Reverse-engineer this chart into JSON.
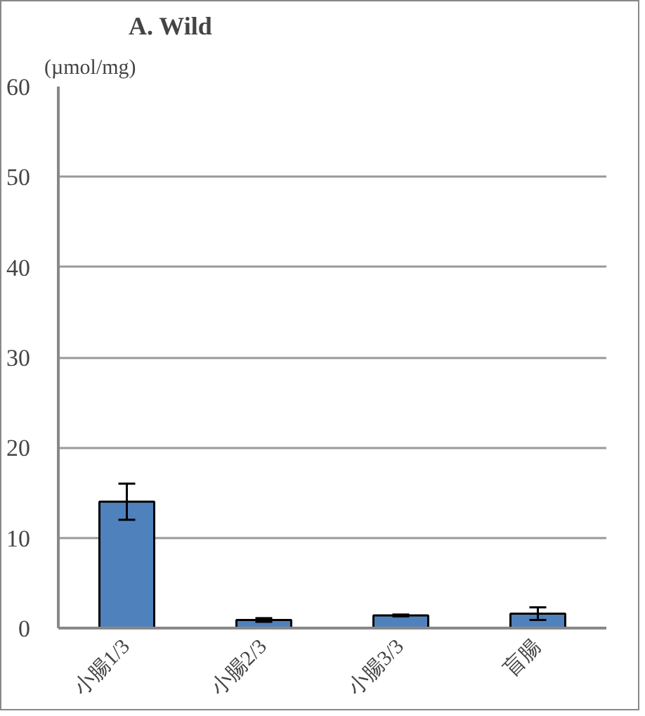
{
  "chart_data": {
    "type": "bar",
    "title": "A.  Wild",
    "ylabel": "(µmol/mg)",
    "categories": [
      "小腸1/3",
      "小腸2/3",
      "小腸3/3",
      "盲腸"
    ],
    "values": [
      14,
      0.9,
      1.4,
      1.6
    ],
    "errors": [
      2,
      0.2,
      0.1,
      0.7
    ],
    "color": "#4f81bd",
    "ylim": [
      0,
      60
    ],
    "yticks": [
      0,
      10,
      20,
      30,
      40,
      50,
      60
    ],
    "grid": "y"
  }
}
